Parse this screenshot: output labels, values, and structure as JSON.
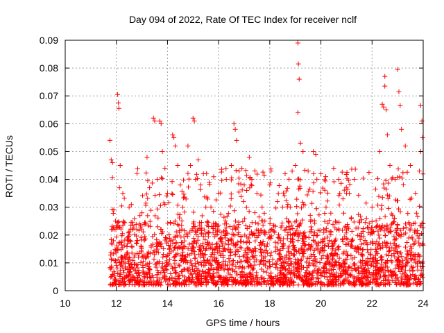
{
  "chart_data": {
    "type": "scatter",
    "title": "Day 094 of 2022, Rate Of TEC Index for receiver nclf",
    "xlabel": "GPS time / hours",
    "ylabel": "ROTI / TECUs",
    "xlim": [
      10,
      24
    ],
    "ylim": [
      0,
      0.09
    ],
    "xticks": [
      "10",
      "12",
      "14",
      "16",
      "18",
      "20",
      "22",
      "24"
    ],
    "yticks": [
      "0",
      "0.01",
      "0.02",
      "0.03",
      "0.04",
      "0.05",
      "0.06",
      "0.07",
      "0.08",
      "0.09"
    ],
    "grid": true,
    "marker": "+",
    "color": "#ff0000",
    "series": [
      {
        "name": "ROTI",
        "points": [
          [
            11.75,
            0.054
          ],
          [
            11.8,
            0.047
          ],
          [
            11.85,
            0.046
          ],
          [
            11.9,
            0.029
          ],
          [
            11.95,
            0.022
          ],
          [
            12.05,
            0.0705
          ],
          [
            12.08,
            0.0675
          ],
          [
            12.1,
            0.0655
          ],
          [
            12.15,
            0.045
          ],
          [
            12.12,
            0.037
          ],
          [
            12.5,
            0.03
          ],
          [
            12.8,
            0.022
          ],
          [
            13.0,
            0.028
          ],
          [
            13.2,
            0.048
          ],
          [
            13.3,
            0.037
          ],
          [
            13.45,
            0.062
          ],
          [
            13.5,
            0.061
          ],
          [
            13.6,
            0.04
          ],
          [
            13.7,
            0.061
          ],
          [
            13.75,
            0.06
          ],
          [
            13.8,
            0.05
          ],
          [
            13.9,
            0.044
          ],
          [
            14.0,
            0.035
          ],
          [
            14.2,
            0.056
          ],
          [
            14.25,
            0.055
          ],
          [
            14.3,
            0.052
          ],
          [
            14.4,
            0.045
          ],
          [
            14.5,
            0.038
          ],
          [
            14.6,
            0.03
          ],
          [
            14.8,
            0.052
          ],
          [
            14.9,
            0.045
          ],
          [
            15.0,
            0.062
          ],
          [
            15.05,
            0.061
          ],
          [
            15.1,
            0.04
          ],
          [
            15.2,
            0.047
          ],
          [
            15.3,
            0.038
          ],
          [
            15.5,
            0.03
          ],
          [
            15.7,
            0.03
          ],
          [
            16.0,
            0.035
          ],
          [
            16.3,
            0.04
          ],
          [
            16.5,
            0.045
          ],
          [
            16.6,
            0.06
          ],
          [
            16.65,
            0.058
          ],
          [
            16.7,
            0.054
          ],
          [
            16.8,
            0.043
          ],
          [
            17.0,
            0.038
          ],
          [
            17.2,
            0.048
          ],
          [
            17.3,
            0.04
          ],
          [
            17.5,
            0.035
          ],
          [
            17.7,
            0.03
          ],
          [
            18.0,
            0.038
          ],
          [
            18.3,
            0.032
          ],
          [
            18.5,
            0.03
          ],
          [
            18.6,
            0.042
          ],
          [
            18.8,
            0.03
          ],
          [
            19.0,
            0.045
          ],
          [
            19.1,
            0.089
          ],
          [
            19.12,
            0.0815
          ],
          [
            19.15,
            0.076
          ],
          [
            19.1,
            0.064
          ],
          [
            19.2,
            0.053
          ],
          [
            19.3,
            0.05
          ],
          [
            19.5,
            0.043
          ],
          [
            19.7,
            0.05
          ],
          [
            19.8,
            0.049
          ],
          [
            20.0,
            0.042
          ],
          [
            20.2,
            0.03
          ],
          [
            20.5,
            0.044
          ],
          [
            20.7,
            0.04
          ],
          [
            21.0,
            0.035
          ],
          [
            21.3,
            0.04
          ],
          [
            21.5,
            0.025
          ],
          [
            22.0,
            0.03
          ],
          [
            22.3,
            0.05
          ],
          [
            22.4,
            0.067
          ],
          [
            22.45,
            0.066
          ],
          [
            22.5,
            0.077
          ],
          [
            22.5,
            0.0735
          ],
          [
            22.55,
            0.065
          ],
          [
            22.6,
            0.056
          ],
          [
            22.7,
            0.045
          ],
          [
            22.9,
            0.04
          ],
          [
            23.0,
            0.0795
          ],
          [
            23.05,
            0.0715
          ],
          [
            23.1,
            0.0665
          ],
          [
            23.15,
            0.058
          ],
          [
            23.3,
            0.052
          ],
          [
            23.5,
            0.045
          ],
          [
            23.7,
            0.035
          ],
          [
            23.9,
            0.0665
          ],
          [
            23.95,
            0.061
          ],
          [
            23.98,
            0.055
          ],
          [
            23.9,
            0.05
          ],
          [
            23.85,
            0.043
          ]
        ],
        "bulk": {
          "x_range": [
            11.75,
            24
          ],
          "y_floor": 0.002,
          "y_typical_max": 0.025,
          "density": "dense"
        }
      }
    ]
  }
}
